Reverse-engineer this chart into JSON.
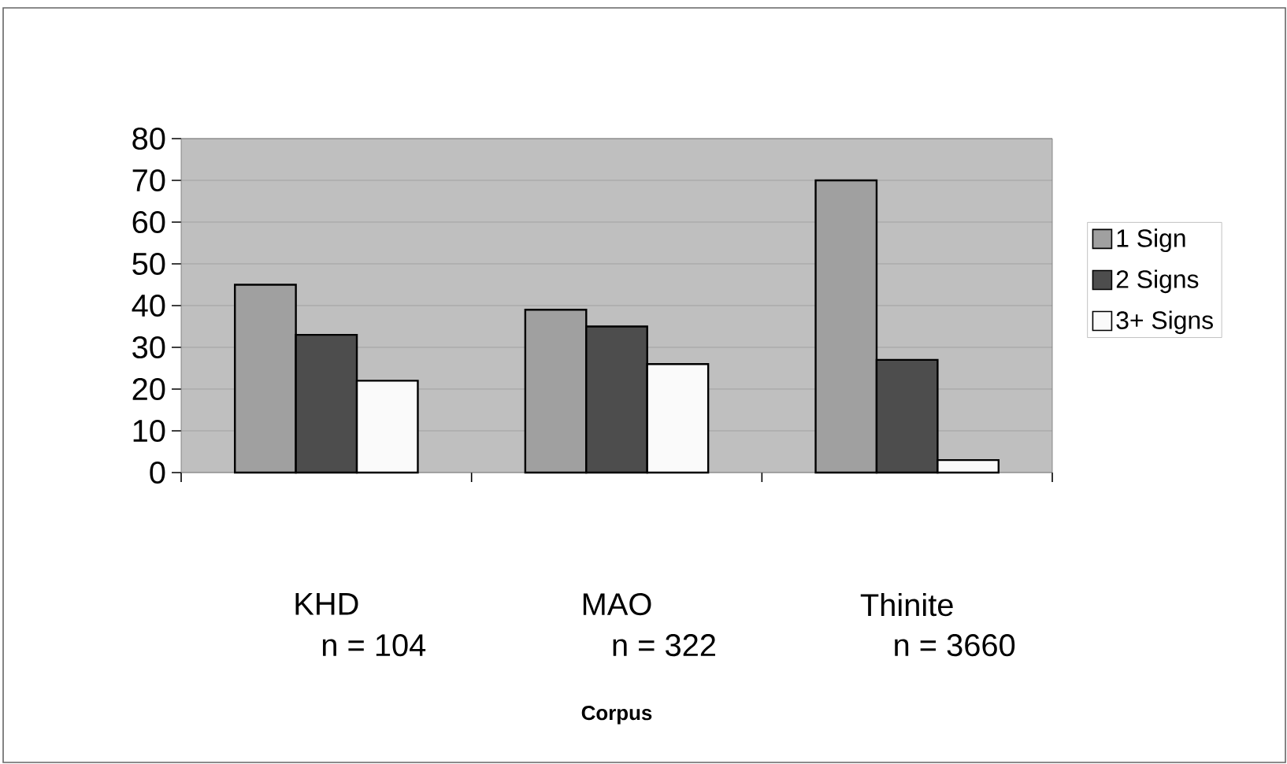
{
  "chart_data": {
    "type": "bar",
    "xlabel": "Corpus",
    "categories": [
      "KHD",
      "MAO",
      "Thinite"
    ],
    "annotations": [
      "n = 104",
      "n = 322",
      "n = 3660"
    ],
    "series": [
      {
        "name": "1 Sign",
        "color": "#a0a0a0",
        "values": [
          45,
          39,
          70
        ]
      },
      {
        "name": "2 Signs",
        "color": "#4d4d4d",
        "values": [
          33,
          35,
          27
        ]
      },
      {
        "name": "3+ Signs",
        "color": "#fafafa",
        "values": [
          22,
          26,
          3
        ]
      }
    ],
    "ylim": [
      0,
      80
    ],
    "yticks": [
      0,
      10,
      20,
      30,
      40,
      50,
      60,
      70,
      80
    ],
    "grid": "y",
    "legend": "right"
  }
}
